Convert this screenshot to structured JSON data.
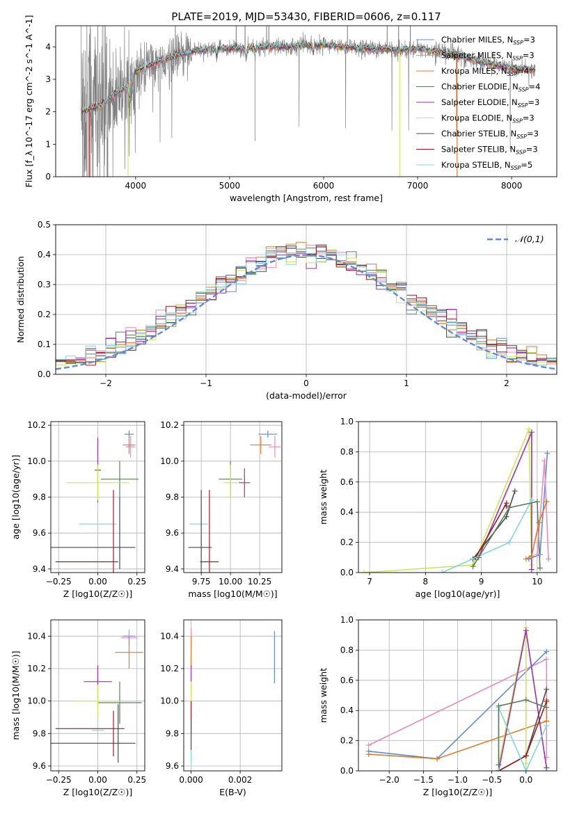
{
  "title": "PLATE=2019, MJD=53430, FIBERID=0606, z=0.117",
  "colors": {
    "Chabrier MILES": "#5e8bd1",
    "Salpeter MILES": "#e98ab8",
    "Kroupa MILES": "#e07a25",
    "Chabrier ELODIE": "#5a7d5a",
    "Salpeter ELODIE": "#9a2fb0",
    "Kroupa ELODIE": "#cfe356",
    "Chabrier STELIB": "#4a4a4a",
    "Salpeter STELIB": "#a11b1b",
    "Kroupa STELIB": "#7fd6dc",
    "observed": "#808080"
  },
  "chart_data": [
    {
      "type": "line",
      "id": "spectrum",
      "xlabel": "wavelength [Angstrom, rest frame]",
      "ylabel": "Flux [f_λ 10^-17 erg cm^-2 s^-1 A^-1]",
      "xlim": [
        3150,
        8480
      ],
      "ylim": [
        0,
        4.65
      ],
      "xticks": [
        4000,
        5000,
        6000,
        7000,
        8000
      ],
      "yticks": [
        0,
        1,
        2,
        3,
        4
      ],
      "legend_position": "top-right",
      "legend": [
        {
          "name": "Chabrier MILES",
          "nssp": "3"
        },
        {
          "name": "Salpeter MILES",
          "nssp": "3"
        },
        {
          "name": "Kroupa MILES",
          "nssp": "4"
        },
        {
          "name": "Chabrier ELODIE",
          "nssp": "4"
        },
        {
          "name": "Salpeter ELODIE",
          "nssp": "3"
        },
        {
          "name": "Kroupa ELODIE",
          "nssp": "3"
        },
        {
          "name": "Chabrier STELIB",
          "nssp": "3"
        },
        {
          "name": "Salpeter STELIB",
          "nssp": "3"
        },
        {
          "name": "Kroupa STELIB",
          "nssp": "5"
        }
      ],
      "continuum": [
        [
          3420,
          2.0
        ],
        [
          3600,
          2.15
        ],
        [
          3700,
          2.35
        ],
        [
          3800,
          2.6
        ],
        [
          3900,
          2.75
        ],
        [
          4000,
          3.25
        ],
        [
          4200,
          3.5
        ],
        [
          4400,
          3.7
        ],
        [
          4600,
          3.85
        ],
        [
          4800,
          3.95
        ],
        [
          5000,
          3.95
        ],
        [
          5200,
          3.95
        ],
        [
          5400,
          4.0
        ],
        [
          5600,
          4.0
        ],
        [
          5800,
          4.05
        ],
        [
          6000,
          4.05
        ],
        [
          6200,
          4.0
        ],
        [
          6400,
          3.95
        ],
        [
          6600,
          3.95
        ],
        [
          6800,
          3.9
        ],
        [
          7000,
          3.95
        ],
        [
          7200,
          3.85
        ],
        [
          7400,
          3.75
        ],
        [
          7600,
          3.6
        ],
        [
          7800,
          3.45
        ],
        [
          8000,
          3.35
        ],
        [
          8250,
          3.3
        ]
      ],
      "model_wavelength_range": [
        3420,
        8250
      ],
      "observed_wavelength_range": [
        3420,
        8250
      ]
    },
    {
      "type": "histogram",
      "id": "residuals",
      "xlabel": "(data-model)/error",
      "ylabel": "Normed distribution",
      "xlim": [
        -2.5,
        2.5
      ],
      "ylim": [
        0,
        0.5
      ],
      "xticks": [
        -2,
        -1,
        0,
        1,
        2
      ],
      "yticks": [
        0.0,
        0.1,
        0.2,
        0.3,
        0.4,
        0.5
      ],
      "grid": true,
      "legend_position": "top-right",
      "reference_curve": {
        "name": "𝒩(0,1)",
        "mean": 0,
        "sigma": 1,
        "style": "dashed"
      },
      "bin_width": 0.1,
      "bin_range": [
        -2.5,
        2.5
      ]
    },
    {
      "type": "errorbar",
      "id": "age-vs-Z",
      "xlabel": "Z [log10(Z/Z☉)]",
      "ylabel": "age  [log10(age/yr)]",
      "xlim": [
        -0.3,
        0.3
      ],
      "ylim": [
        9.38,
        10.22
      ],
      "xticks": [
        -0.25,
        0.0,
        0.25
      ],
      "yticks": [
        9.4,
        9.6,
        9.8,
        10.0,
        10.2
      ],
      "grid": true,
      "points": [
        {
          "s": "Chabrier MILES",
          "x": 0.2,
          "xe": 0.03,
          "y": 10.15,
          "ye": 0.02
        },
        {
          "s": "Salpeter MILES",
          "x": 0.21,
          "xe": 0.03,
          "y": 10.08,
          "ye": 0.06
        },
        {
          "s": "Kroupa MILES",
          "x": 0.2,
          "xe": 0.04,
          "y": 10.09,
          "ye": 0.05
        },
        {
          "s": "Chabrier ELODIE",
          "x": 0.14,
          "xe": 0.12,
          "y": 9.9,
          "ye": 0.1
        },
        {
          "s": "Salpeter ELODIE",
          "x": 0.0,
          "xe": 0.02,
          "y": 9.95,
          "ye": 0.18
        },
        {
          "s": "Kroupa ELODIE",
          "x": 0.0,
          "xe": 0.2,
          "y": 9.88,
          "ye": 0.1
        },
        {
          "s": "Chabrier STELIB",
          "x": -0.03,
          "xe": 0.27,
          "y": 9.52,
          "ye": 0.0
        },
        {
          "s": "Salpeter STELIB",
          "x": -0.07,
          "xe": 0.2,
          "y": 9.44,
          "ye": 0.0
        },
        {
          "s": "Kroupa STELIB",
          "x": 0.0,
          "xe": 0.12,
          "y": 9.65,
          "ye": 0.0
        },
        {
          "s": "Salpeter STELIB",
          "x": 0.1,
          "xe": 0.0,
          "y": 9.6,
          "ye": 0.24
        },
        {
          "s": "Chabrier STELIB",
          "x": 0.14,
          "xe": 0.0,
          "y": 9.6,
          "ye": 0.2
        }
      ]
    },
    {
      "type": "errorbar",
      "id": "age-vs-mass",
      "xlabel": "mass [log10(M/M☉)]",
      "ylabel": "",
      "xlim": [
        9.6,
        10.44
      ],
      "ylim": [
        9.38,
        10.22
      ],
      "xticks": [
        9.75,
        10.0,
        10.25
      ],
      "yticks": [
        9.4,
        9.6,
        9.8,
        10.0,
        10.2
      ],
      "grid": true,
      "points": [
        {
          "s": "Chabrier MILES",
          "x": 10.32,
          "xe": 0.08,
          "y": 10.15,
          "ye": 0.02
        },
        {
          "s": "Salpeter MILES",
          "x": 10.38,
          "xe": 0.05,
          "y": 10.08,
          "ye": 0.06
        },
        {
          "s": "Kroupa MILES",
          "x": 10.26,
          "xe": 0.09,
          "y": 10.09,
          "ye": 0.05
        },
        {
          "s": "Chabrier ELODIE",
          "x": 10.0,
          "xe": 0.1,
          "y": 9.9,
          "ye": 0.1
        },
        {
          "s": "Salpeter ELODIE",
          "x": 10.12,
          "xe": 0.05,
          "y": 9.88,
          "ye": 0.08
        },
        {
          "s": "Kroupa ELODIE",
          "x": 10.0,
          "xe": 0.06,
          "y": 9.88,
          "ye": 0.1
        },
        {
          "s": "Chabrier STELIB",
          "x": 9.74,
          "xe": 0.1,
          "y": 9.52,
          "ye": 0.0
        },
        {
          "s": "Salpeter STELIB",
          "x": 9.82,
          "xe": 0.08,
          "y": 9.44,
          "ye": 0.0
        },
        {
          "s": "Kroupa STELIB",
          "x": 9.73,
          "xe": 0.08,
          "y": 9.65,
          "ye": 0.0
        },
        {
          "s": "Chabrier STELIB",
          "x": 9.75,
          "xe": 0.0,
          "y": 9.6,
          "ye": 0.24
        },
        {
          "s": "Salpeter STELIB",
          "x": 9.82,
          "xe": 0.0,
          "y": 9.6,
          "ye": 0.24
        }
      ]
    },
    {
      "type": "line",
      "id": "weight-vs-age",
      "xlabel": "age  [log10(age/yr)]",
      "ylabel": "mass weight",
      "xlim": [
        6.8,
        10.35
      ],
      "ylim": [
        0,
        1
      ],
      "xticks": [
        7,
        8,
        9,
        10
      ],
      "yticks": [
        0.0,
        0.2,
        0.4,
        0.6,
        0.8,
        1.0
      ],
      "grid": true,
      "series": [
        {
          "s": "Kroupa ELODIE",
          "x": [
            6.9,
            8.85,
            9.85,
            9.9
          ],
          "y": [
            0.0,
            0.05,
            0.95,
            0.05
          ]
        },
        {
          "s": "Salpeter ELODIE",
          "x": [
            8.95,
            9.9,
            9.9
          ],
          "y": [
            0.1,
            0.93,
            0.02
          ]
        },
        {
          "s": "Chabrier STELIB",
          "x": [
            8.85,
            9.45,
            9.6
          ],
          "y": [
            0.09,
            0.37,
            0.54
          ]
        },
        {
          "s": "Salpeter STELIB",
          "x": [
            8.9,
            9.45,
            9.45
          ],
          "y": [
            0.1,
            0.46,
            0.44
          ]
        },
        {
          "s": "Kroupa STELIB",
          "x": [
            8.3,
            9.5,
            9.9
          ],
          "y": [
            0.0,
            0.2,
            0.48
          ]
        },
        {
          "s": "Chabrier ELODIE",
          "x": [
            8.85,
            9.5,
            10.0,
            10.05
          ],
          "y": [
            0.04,
            0.43,
            0.47,
            0.03
          ]
        },
        {
          "s": "Chabrier MILES",
          "x": [
            9.85,
            10.05,
            10.18
          ],
          "y": [
            0.09,
            0.12,
            0.79
          ]
        },
        {
          "s": "Salpeter MILES",
          "x": [
            10.0,
            10.13,
            10.2
          ],
          "y": [
            0.12,
            0.74,
            0.09
          ]
        },
        {
          "s": "Kroupa MILES",
          "x": [
            9.8,
            9.9,
            10.03,
            10.17
          ],
          "y": [
            0.09,
            0.11,
            0.33,
            0.47
          ]
        }
      ]
    },
    {
      "type": "errorbar",
      "id": "mass-vs-Z",
      "xlabel": "Z [log10(Z/Z☉)]",
      "ylabel": "mass [log10(M/M☉)]",
      "xlim": [
        -0.3,
        0.3
      ],
      "ylim": [
        9.57,
        10.5
      ],
      "xticks": [
        -0.25,
        0.0,
        0.25
      ],
      "yticks": [
        9.6,
        9.8,
        10.0,
        10.2,
        10.4
      ],
      "grid": true,
      "points": [
        {
          "s": "Chabrier MILES",
          "x": 0.2,
          "xe": 0.04,
          "y": 10.4,
          "ye": 0.02
        },
        {
          "s": "Salpeter MILES",
          "x": 0.2,
          "xe": 0.05,
          "y": 10.39,
          "ye": 0.05
        },
        {
          "s": "Kroupa MILES",
          "x": 0.2,
          "xe": 0.09,
          "y": 10.3,
          "ye": 0.1
        },
        {
          "s": "Chabrier ELODIE",
          "x": 0.14,
          "xe": 0.14,
          "y": 9.99,
          "ye": 0.13
        },
        {
          "s": "Salpeter ELODIE",
          "x": 0.0,
          "xe": 0.09,
          "y": 10.12,
          "ye": 0.1
        },
        {
          "s": "Kroupa ELODIE",
          "x": 0.0,
          "xe": 0.15,
          "y": 10.0,
          "ye": 0.1
        },
        {
          "s": "Chabrier STELIB",
          "x": -0.03,
          "xe": 0.27,
          "y": 9.74,
          "ye": 0.0
        },
        {
          "s": "Salpeter STELIB",
          "x": -0.05,
          "xe": 0.22,
          "y": 9.83,
          "ye": 0.0
        },
        {
          "s": "Kroupa STELIB",
          "x": 0.0,
          "xe": 0.04,
          "y": 9.82,
          "ye": 0.0
        },
        {
          "s": "Salpeter STELIB",
          "x": 0.1,
          "xe": 0.0,
          "y": 9.8,
          "ye": 0.14
        },
        {
          "s": "Chabrier STELIB",
          "x": 0.13,
          "xe": 0.0,
          "y": 9.8,
          "ye": 0.18
        }
      ]
    },
    {
      "type": "errorbar",
      "id": "mass-vs-ebv",
      "xlabel": "E(B-V)",
      "ylabel": "",
      "xlim": [
        -0.0003,
        0.0037
      ],
      "ylim": [
        9.57,
        10.5
      ],
      "xticks": [
        0.0,
        0.002
      ],
      "yticks": [
        9.6,
        9.8,
        10.0,
        10.2,
        10.4
      ],
      "grid": true,
      "points": [
        {
          "s": "Chabrier MILES",
          "x": 0.0034,
          "xe": 0.0,
          "y": 10.27,
          "ye": 0.16
        },
        {
          "s": "Salpeter MILES",
          "x": 0.0,
          "xe": 0.0,
          "y": 10.38,
          "ye": 0.07
        },
        {
          "s": "Kroupa MILES",
          "x": 0.0,
          "xe": 0.0,
          "y": 10.3,
          "ye": 0.1
        },
        {
          "s": "Salpeter ELODIE",
          "x": 0.0,
          "xe": 0.0,
          "y": 10.12,
          "ye": 0.1
        },
        {
          "s": "Kroupa ELODIE",
          "x": 0.0,
          "xe": 0.0,
          "y": 10.0,
          "ye": 0.12
        },
        {
          "s": "Salpeter STELIB",
          "x": 0.0,
          "xe": 0.0,
          "y": 9.9,
          "ye": 0.1
        },
        {
          "s": "Kroupa STELIB",
          "x": 0.0,
          "xe": 0.0,
          "y": 9.75,
          "ye": 0.13
        },
        {
          "s": "Chabrier STELIB",
          "x": 0.0,
          "xe": 0.0,
          "y": 9.8,
          "ye": 0.1
        }
      ]
    },
    {
      "type": "line",
      "id": "weight-vs-Z",
      "xlabel": "Z [log10(Z/Z☉)]",
      "ylabel": "mass weight",
      "xlim": [
        -2.45,
        0.45
      ],
      "ylim": [
        0,
        1
      ],
      "xticks": [
        -2.0,
        -1.5,
        -1.0,
        -0.5,
        0.0
      ],
      "yticks": [
        0.0,
        0.2,
        0.4,
        0.6,
        0.8,
        1.0
      ],
      "grid": true,
      "series": [
        {
          "s": "Salpeter MILES",
          "x": [
            -2.3,
            0.3,
            0.3
          ],
          "y": [
            0.17,
            0.74,
            0.09
          ]
        },
        {
          "s": "Chabrier MILES",
          "x": [
            -2.3,
            -1.3,
            0.3
          ],
          "y": [
            0.13,
            0.08,
            0.79
          ]
        },
        {
          "s": "Kroupa MILES",
          "x": [
            -2.3,
            -1.3,
            0.3,
            0.3
          ],
          "y": [
            0.11,
            0.08,
            0.33,
            0.47
          ]
        },
        {
          "s": "Kroupa ELODIE",
          "x": [
            -0.4,
            0.0,
            0.0
          ],
          "y": [
            0.04,
            0.95,
            0.05
          ]
        },
        {
          "s": "Salpeter ELODIE",
          "x": [
            -0.4,
            0.0,
            0.3
          ],
          "y": [
            0.0,
            0.93,
            0.02
          ]
        },
        {
          "s": "Chabrier STELIB",
          "x": [
            -0.4,
            0.0,
            0.3
          ],
          "y": [
            0.0,
            0.1,
            0.54
          ]
        },
        {
          "s": "Salpeter STELIB",
          "x": [
            -0.4,
            0.0,
            0.3
          ],
          "y": [
            0.0,
            0.1,
            0.46
          ]
        },
        {
          "s": "Kroupa STELIB",
          "x": [
            -0.4,
            -0.4,
            0.0,
            0.3
          ],
          "y": [
            0.0,
            0.42,
            0.0,
            0.3
          ]
        },
        {
          "s": "Chabrier ELODIE",
          "x": [
            -0.4,
            -0.4,
            0.0,
            0.3
          ],
          "y": [
            0.04,
            0.43,
            0.47,
            0.42
          ]
        }
      ]
    }
  ]
}
